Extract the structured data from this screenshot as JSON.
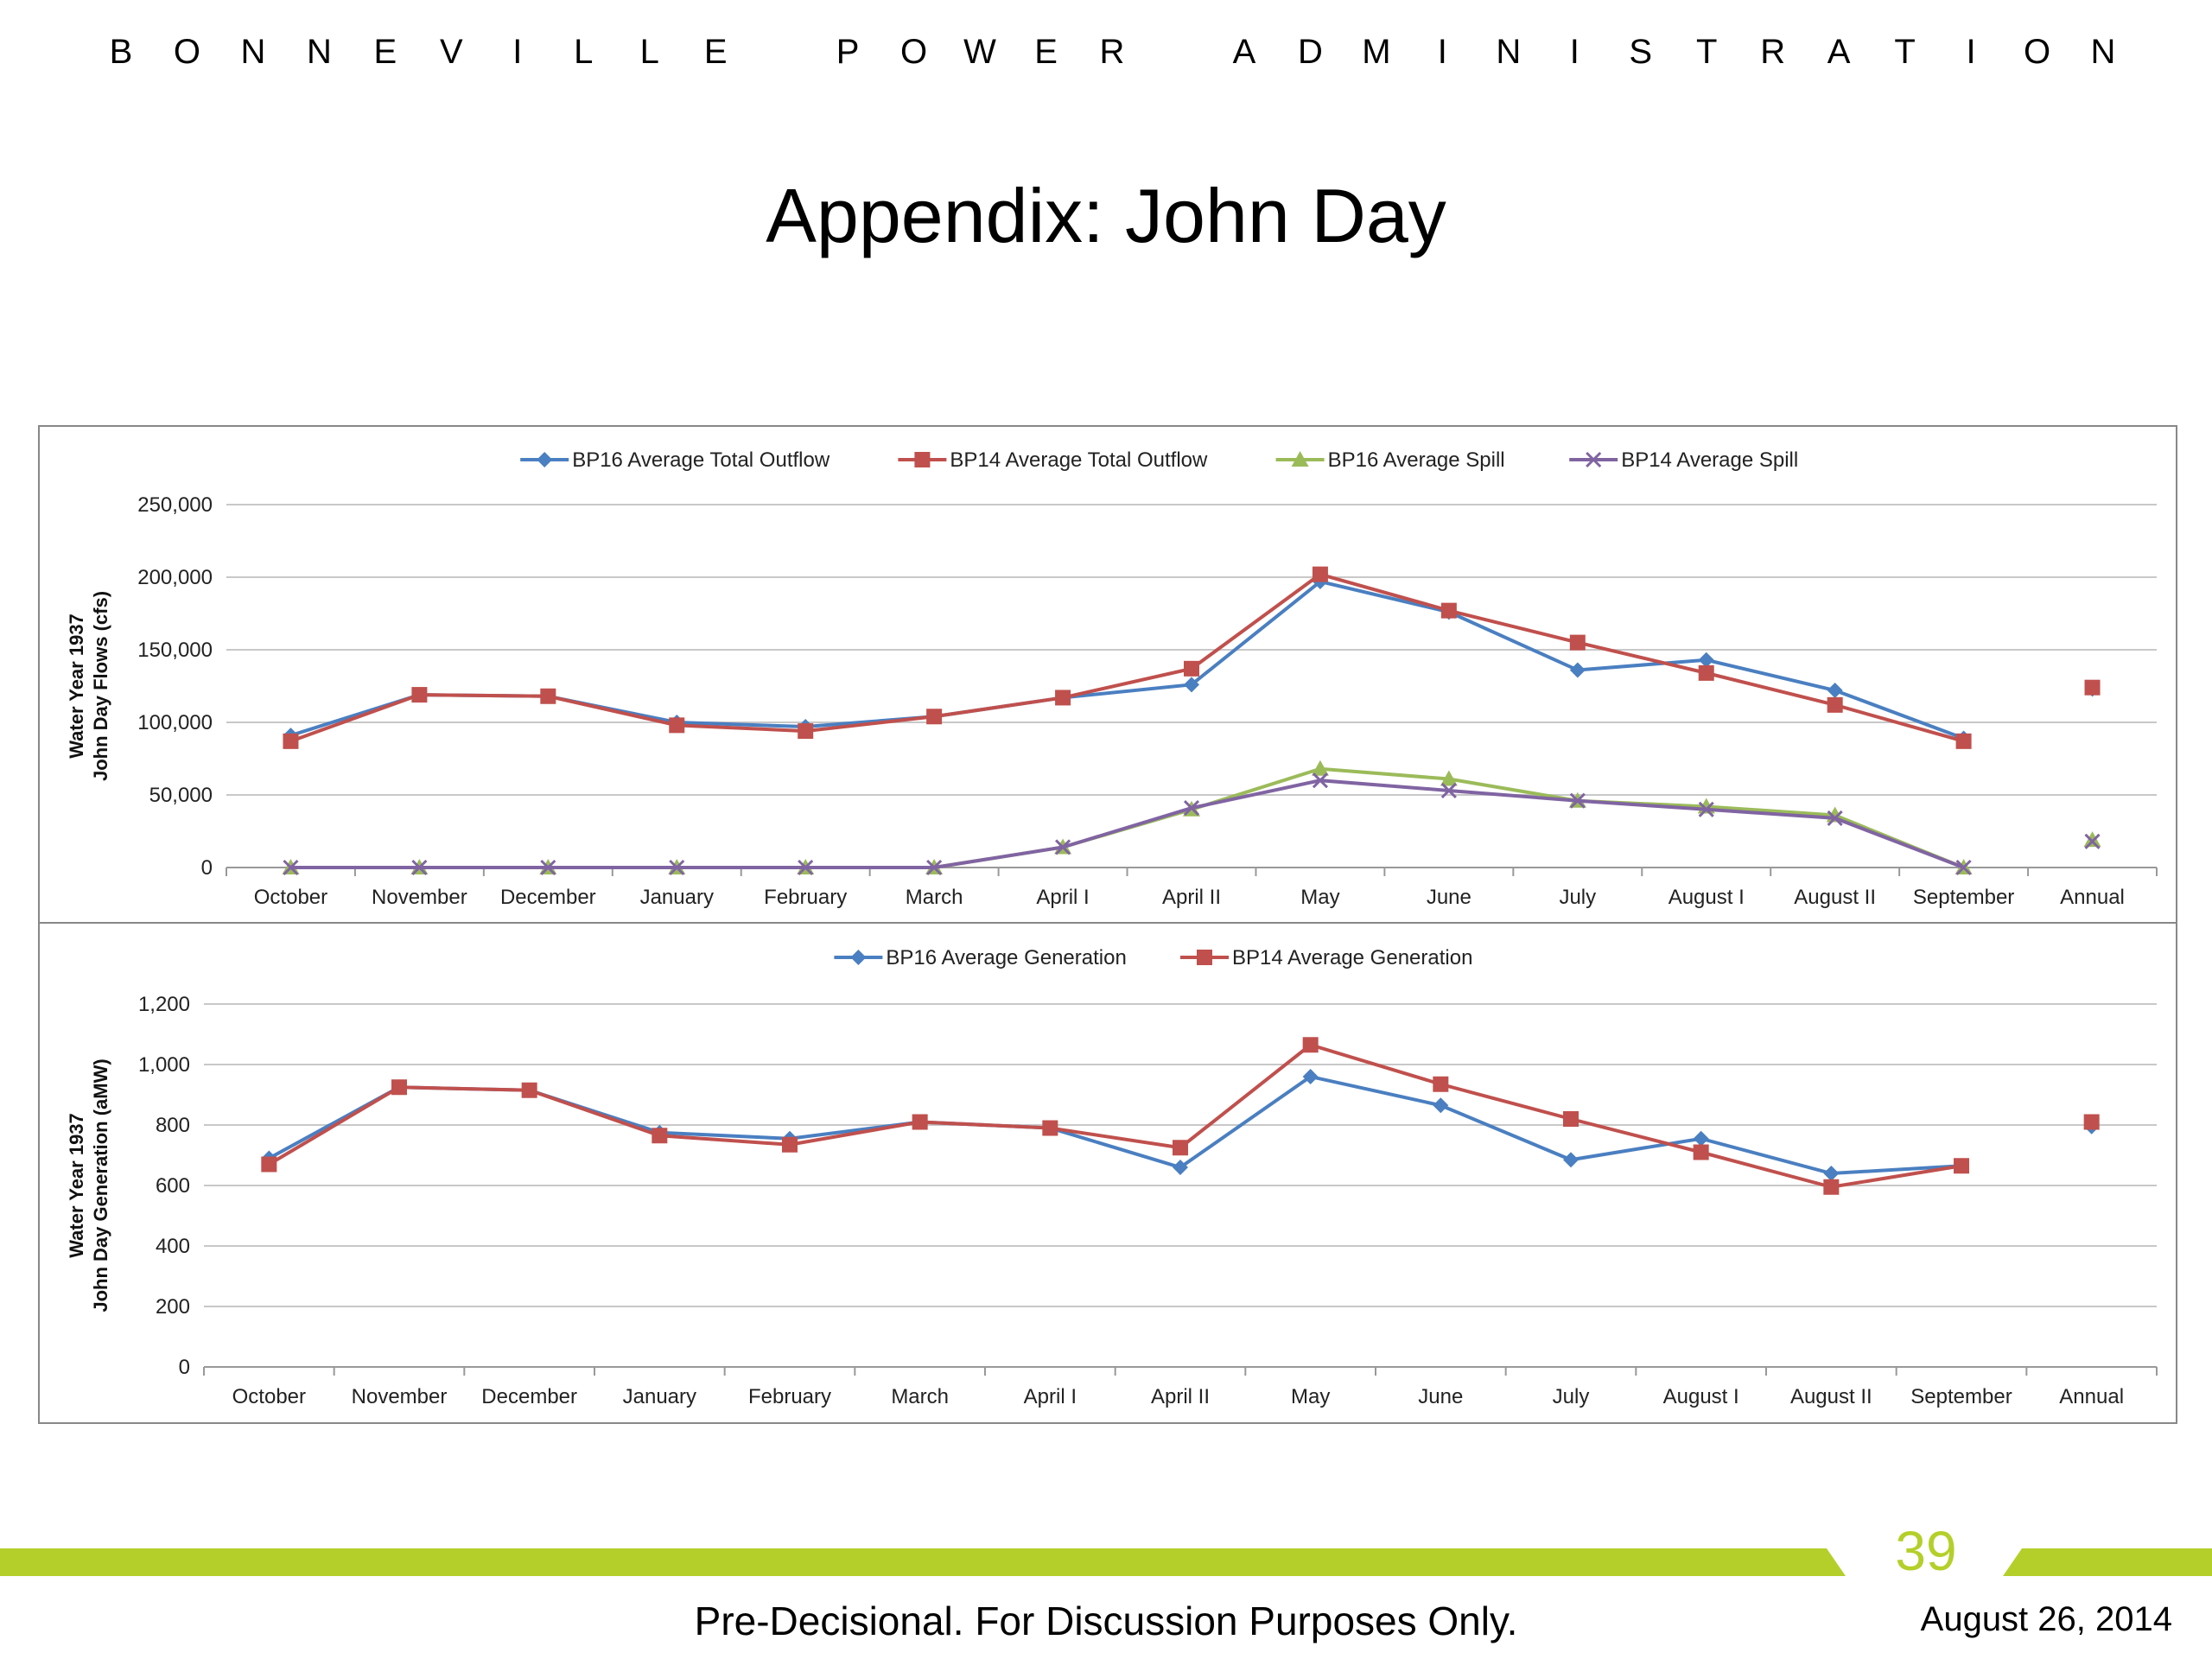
{
  "header": {
    "org_name": "BONNEVILLE POWER ADMINISTRATION"
  },
  "slide": {
    "title": "Appendix:  John Day"
  },
  "colors": {
    "bp16_blue": "#4a7fc1",
    "bp14_red": "#c0504d",
    "bp16_spill_green": "#9bbb59",
    "bp14_spill_purple": "#8064a2",
    "accent_green": "#b5cf2a"
  },
  "chart_data": [
    {
      "type": "line",
      "ylabel_line1": "Water Year 1937",
      "ylabel_line2": "John Day Flows (cfs)",
      "ylim": [
        0,
        250000
      ],
      "yticks": [
        0,
        50000,
        100000,
        150000,
        200000,
        250000
      ],
      "ytick_labels": [
        "0",
        "50,000",
        "100,000",
        "150,000",
        "200,000",
        "250,000"
      ],
      "grid": true,
      "legend_position": "top",
      "categories": [
        "October",
        "November",
        "December",
        "January",
        "February",
        "March",
        "April I",
        "April II",
        "May",
        "June",
        "July",
        "August I",
        "August II",
        "September",
        "Annual"
      ],
      "series": [
        {
          "name": "BP16 Average Total Outflow",
          "marker": "diamond",
          "color": "#4a7fc1",
          "values": [
            91000,
            119000,
            118000,
            100000,
            97000,
            104000,
            117000,
            126000,
            197000,
            176000,
            136000,
            143000,
            122000,
            89000,
            123000
          ]
        },
        {
          "name": "BP14 Average Total Outflow",
          "marker": "square",
          "color": "#c0504d",
          "values": [
            87000,
            119000,
            118000,
            98000,
            94000,
            104000,
            117000,
            137000,
            202000,
            177000,
            155000,
            134000,
            112000,
            87000,
            124000
          ]
        },
        {
          "name": "BP16 Average Spill",
          "marker": "triangle",
          "color": "#9bbb59",
          "values": [
            0,
            0,
            0,
            0,
            0,
            0,
            14000,
            40000,
            68000,
            61000,
            46000,
            42000,
            36000,
            0,
            19000
          ]
        },
        {
          "name": "BP14 Average Spill",
          "marker": "x",
          "color": "#8064a2",
          "values": [
            0,
            0,
            0,
            0,
            0,
            0,
            14000,
            41000,
            60000,
            53000,
            46000,
            40000,
            34000,
            0,
            18000
          ]
        }
      ]
    },
    {
      "type": "line",
      "ylabel_line1": "Water Year 1937",
      "ylabel_line2": "John Day Generation (aMW)",
      "ylim": [
        0,
        1200
      ],
      "yticks": [
        0,
        200,
        400,
        600,
        800,
        1000,
        1200
      ],
      "ytick_labels": [
        "0",
        "200",
        "400",
        "600",
        "800",
        "1,000",
        "1,200"
      ],
      "grid": true,
      "legend_position": "top",
      "categories": [
        "October",
        "November",
        "December",
        "January",
        "February",
        "March",
        "April I",
        "April II",
        "May",
        "June",
        "July",
        "August I",
        "August II",
        "September",
        "Annual"
      ],
      "series": [
        {
          "name": "BP16 Average Generation",
          "marker": "diamond",
          "color": "#4a7fc1",
          "values": [
            690,
            925,
            915,
            775,
            755,
            810,
            790,
            660,
            960,
            865,
            685,
            755,
            640,
            665,
            795
          ]
        },
        {
          "name": "BP14 Average Generation",
          "marker": "square",
          "color": "#c0504d",
          "values": [
            670,
            925,
            915,
            765,
            735,
            810,
            790,
            725,
            1065,
            935,
            820,
            710,
            595,
            665,
            810
          ]
        }
      ]
    }
  ],
  "footer": {
    "page_number": "39",
    "disclaimer": "Pre-Decisional.  For Discussion Purposes Only.",
    "date": "August 26, 2014"
  }
}
